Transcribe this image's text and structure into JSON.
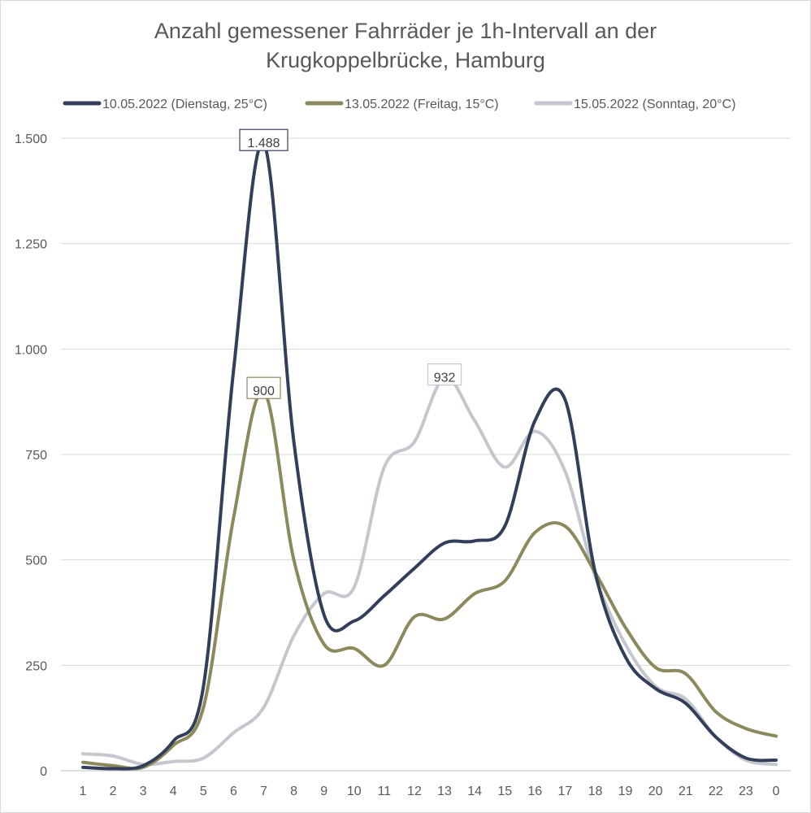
{
  "chart_data": {
    "type": "line",
    "title_lines": [
      "Anzahl gemessener Fahrräder je 1h-Intervall an der",
      "Krugkoppelbrücke, Hamburg"
    ],
    "xlabel": "",
    "ylabel": "",
    "categories": [
      "1",
      "2",
      "3",
      "4",
      "5",
      "6",
      "7",
      "8",
      "9",
      "10",
      "11",
      "12",
      "13",
      "14",
      "15",
      "16",
      "17",
      "18",
      "19",
      "20",
      "21",
      "22",
      "23",
      "0"
    ],
    "ylim": [
      0,
      1500
    ],
    "yticks": [
      0,
      250,
      500,
      750,
      1000,
      1250,
      1500
    ],
    "ytick_labels": [
      "0",
      "250",
      "500",
      "750",
      "1.000",
      "1.250",
      "1.500"
    ],
    "grid": true,
    "legend_position": "top",
    "smooth": true,
    "series": [
      {
        "name": "10.05.2022 (Dienstag, 25°C)",
        "color": "#333f5a",
        "values": [
          8,
          5,
          12,
          70,
          200,
          950,
          1488,
          780,
          370,
          355,
          415,
          480,
          540,
          545,
          580,
          830,
          880,
          470,
          270,
          195,
          160,
          80,
          30,
          25
        ],
        "data_labels": [
          {
            "index": 6,
            "text": "1.488"
          }
        ]
      },
      {
        "name": "13.05.2022 (Freitag, 15°C)",
        "color": "#8c8a5c",
        "values": [
          20,
          12,
          8,
          60,
          150,
          600,
          900,
          500,
          300,
          290,
          250,
          365,
          360,
          420,
          450,
          565,
          580,
          470,
          340,
          245,
          230,
          140,
          100,
          82
        ],
        "data_labels": [
          {
            "index": 6,
            "text": "900"
          }
        ]
      },
      {
        "name": "15.05.2022 (Sonntag, 20°C)",
        "color": "#c5c7cf",
        "values": [
          40,
          35,
          15,
          22,
          30,
          90,
          150,
          320,
          420,
          435,
          720,
          780,
          932,
          830,
          720,
          805,
          710,
          460,
          300,
          200,
          170,
          80,
          25,
          15
        ],
        "data_labels": [
          {
            "index": 12,
            "text": "932"
          }
        ]
      }
    ]
  }
}
